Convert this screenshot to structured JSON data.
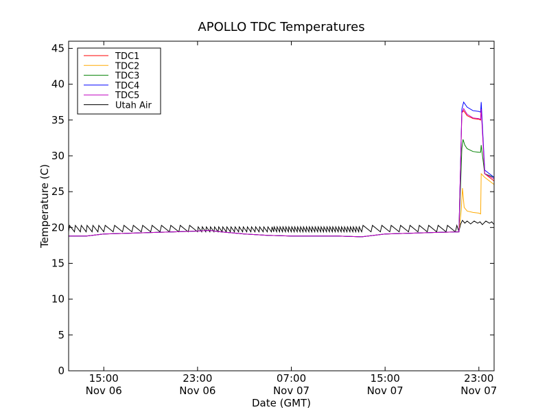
{
  "chart_data": {
    "type": "line",
    "title": "APOLLO TDC Temperatures",
    "xlabel": "Date (GMT)",
    "ylabel": "Temperature (C)",
    "xlim": [
      12.0,
      48.3
    ],
    "ylim": [
      0,
      46
    ],
    "grid": false,
    "legend_position": "top-left",
    "x_unit": "hours since Nov 06 00:00 GMT",
    "x_ticks": [
      {
        "x": 15,
        "time": "15:00",
        "date": "Nov 06"
      },
      {
        "x": 23,
        "time": "23:00",
        "date": "Nov 06"
      },
      {
        "x": 31,
        "time": "07:00",
        "date": "Nov 07"
      },
      {
        "x": 39,
        "time": "15:00",
        "date": "Nov 07"
      },
      {
        "x": 47,
        "time": "23:00",
        "date": "Nov 07"
      }
    ],
    "y_ticks": [
      0,
      5,
      10,
      15,
      20,
      25,
      30,
      35,
      40,
      45
    ],
    "series": [
      {
        "name": "TDC1",
        "color": "#ff0000",
        "points": [
          [
            12.0,
            18.8
          ],
          [
            13.5,
            18.8
          ],
          [
            15.0,
            19.1
          ],
          [
            17.0,
            19.2
          ],
          [
            19.0,
            19.3
          ],
          [
            21.0,
            19.4
          ],
          [
            23.0,
            19.5
          ],
          [
            24.0,
            19.6
          ],
          [
            25.0,
            19.4
          ],
          [
            27.0,
            19.1
          ],
          [
            29.0,
            18.9
          ],
          [
            31.0,
            18.8
          ],
          [
            33.0,
            18.8
          ],
          [
            35.0,
            18.8
          ],
          [
            37.0,
            18.7
          ],
          [
            39.0,
            19.1
          ],
          [
            41.0,
            19.2
          ],
          [
            43.0,
            19.3
          ],
          [
            45.3,
            19.4
          ],
          [
            45.55,
            36.0
          ],
          [
            45.7,
            36.3
          ],
          [
            46.0,
            35.6
          ],
          [
            46.5,
            35.2
          ],
          [
            47.0,
            35.1
          ],
          [
            47.15,
            35.0
          ],
          [
            47.2,
            37.0
          ],
          [
            47.5,
            27.5
          ],
          [
            48.3,
            26.5
          ]
        ]
      },
      {
        "name": "TDC2",
        "color": "#ffaa00",
        "points": [
          [
            12.0,
            18.8
          ],
          [
            13.5,
            18.8
          ],
          [
            15.0,
            19.1
          ],
          [
            17.0,
            19.2
          ],
          [
            19.0,
            19.3
          ],
          [
            21.0,
            19.4
          ],
          [
            23.0,
            19.5
          ],
          [
            24.0,
            19.6
          ],
          [
            25.0,
            19.4
          ],
          [
            27.0,
            19.1
          ],
          [
            29.0,
            18.9
          ],
          [
            31.0,
            18.8
          ],
          [
            33.0,
            18.8
          ],
          [
            35.0,
            18.8
          ],
          [
            37.0,
            18.7
          ],
          [
            39.0,
            19.1
          ],
          [
            41.0,
            19.2
          ],
          [
            43.0,
            19.3
          ],
          [
            45.3,
            19.4
          ],
          [
            45.5,
            22.5
          ],
          [
            45.6,
            25.5
          ],
          [
            45.75,
            22.8
          ],
          [
            46.0,
            22.3
          ],
          [
            46.5,
            22.1
          ],
          [
            47.0,
            22.0
          ],
          [
            47.15,
            21.9
          ],
          [
            47.2,
            27.5
          ],
          [
            47.5,
            27.0
          ],
          [
            48.3,
            26.0
          ]
        ]
      },
      {
        "name": "TDC3",
        "color": "#008000",
        "points": [
          [
            12.0,
            18.8
          ],
          [
            13.5,
            18.8
          ],
          [
            15.0,
            19.1
          ],
          [
            17.0,
            19.2
          ],
          [
            19.0,
            19.3
          ],
          [
            21.0,
            19.4
          ],
          [
            23.0,
            19.5
          ],
          [
            24.0,
            19.6
          ],
          [
            25.0,
            19.4
          ],
          [
            27.0,
            19.1
          ],
          [
            29.0,
            18.9
          ],
          [
            31.0,
            18.8
          ],
          [
            33.0,
            18.8
          ],
          [
            35.0,
            18.8
          ],
          [
            37.0,
            18.7
          ],
          [
            39.0,
            19.1
          ],
          [
            41.0,
            19.2
          ],
          [
            43.0,
            19.3
          ],
          [
            45.3,
            19.4
          ],
          [
            45.55,
            31.0
          ],
          [
            45.65,
            32.3
          ],
          [
            45.8,
            31.5
          ],
          [
            46.0,
            31.0
          ],
          [
            46.5,
            30.6
          ],
          [
            47.0,
            30.5
          ],
          [
            47.15,
            30.5
          ],
          [
            47.2,
            31.5
          ],
          [
            47.5,
            27.5
          ],
          [
            48.3,
            27.0
          ]
        ]
      },
      {
        "name": "TDC4",
        "color": "#0000ff",
        "points": [
          [
            12.0,
            18.8
          ],
          [
            13.5,
            18.8
          ],
          [
            15.0,
            19.1
          ],
          [
            17.0,
            19.2
          ],
          [
            19.0,
            19.3
          ],
          [
            21.0,
            19.4
          ],
          [
            23.0,
            19.5
          ],
          [
            24.0,
            19.6
          ],
          [
            25.0,
            19.4
          ],
          [
            27.0,
            19.1
          ],
          [
            29.0,
            18.9
          ],
          [
            31.0,
            18.8
          ],
          [
            33.0,
            18.8
          ],
          [
            35.0,
            18.8
          ],
          [
            37.0,
            18.7
          ],
          [
            39.0,
            19.1
          ],
          [
            41.0,
            19.2
          ],
          [
            43.0,
            19.3
          ],
          [
            45.3,
            19.4
          ],
          [
            45.55,
            36.5
          ],
          [
            45.7,
            37.5
          ],
          [
            46.0,
            36.8
          ],
          [
            46.5,
            36.3
          ],
          [
            47.0,
            36.2
          ],
          [
            47.15,
            36.1
          ],
          [
            47.2,
            37.5
          ],
          [
            47.5,
            28.0
          ],
          [
            48.3,
            27.0
          ]
        ]
      },
      {
        "name": "TDC5",
        "color": "#bf00bf",
        "points": [
          [
            12.0,
            18.8
          ],
          [
            13.5,
            18.8
          ],
          [
            15.0,
            19.1
          ],
          [
            17.0,
            19.2
          ],
          [
            19.0,
            19.3
          ],
          [
            21.0,
            19.4
          ],
          [
            23.0,
            19.5
          ],
          [
            24.0,
            19.6
          ],
          [
            25.0,
            19.4
          ],
          [
            27.0,
            19.1
          ],
          [
            29.0,
            18.9
          ],
          [
            31.0,
            18.8
          ],
          [
            33.0,
            18.8
          ],
          [
            35.0,
            18.8
          ],
          [
            37.0,
            18.7
          ],
          [
            39.0,
            19.1
          ],
          [
            41.0,
            19.2
          ],
          [
            43.0,
            19.3
          ],
          [
            45.3,
            19.4
          ],
          [
            45.55,
            36.0
          ],
          [
            45.7,
            36.6
          ],
          [
            46.0,
            35.8
          ],
          [
            46.5,
            35.3
          ],
          [
            47.0,
            35.2
          ],
          [
            47.15,
            35.1
          ],
          [
            47.2,
            36.5
          ],
          [
            47.5,
            27.5
          ],
          [
            48.3,
            26.8
          ]
        ]
      },
      {
        "name": "Utah Air",
        "color": "#000000",
        "base": 19.4,
        "cycle_pattern": {
          "segments": [
            [
              12.0,
              15.0,
              0.5,
              0.9
            ],
            [
              15.0,
              23.0,
              0.8,
              0.9
            ],
            [
              23.0,
              29.5,
              0.35,
              0.7
            ],
            [
              29.5,
              37.0,
              0.25,
              0.7
            ],
            [
              37.0,
              45.3,
              0.8,
              0.9
            ]
          ]
        },
        "points_tail": [
          [
            45.3,
            19.5
          ],
          [
            45.45,
            20.5
          ],
          [
            45.6,
            21.0
          ],
          [
            45.8,
            20.6
          ],
          [
            46.0,
            20.9
          ],
          [
            46.3,
            20.5
          ],
          [
            46.6,
            20.9
          ],
          [
            46.9,
            20.6
          ],
          [
            47.1,
            20.8
          ],
          [
            47.3,
            20.4
          ],
          [
            47.6,
            20.9
          ],
          [
            47.9,
            20.6
          ],
          [
            48.1,
            20.8
          ],
          [
            48.3,
            20.4
          ]
        ]
      }
    ]
  }
}
